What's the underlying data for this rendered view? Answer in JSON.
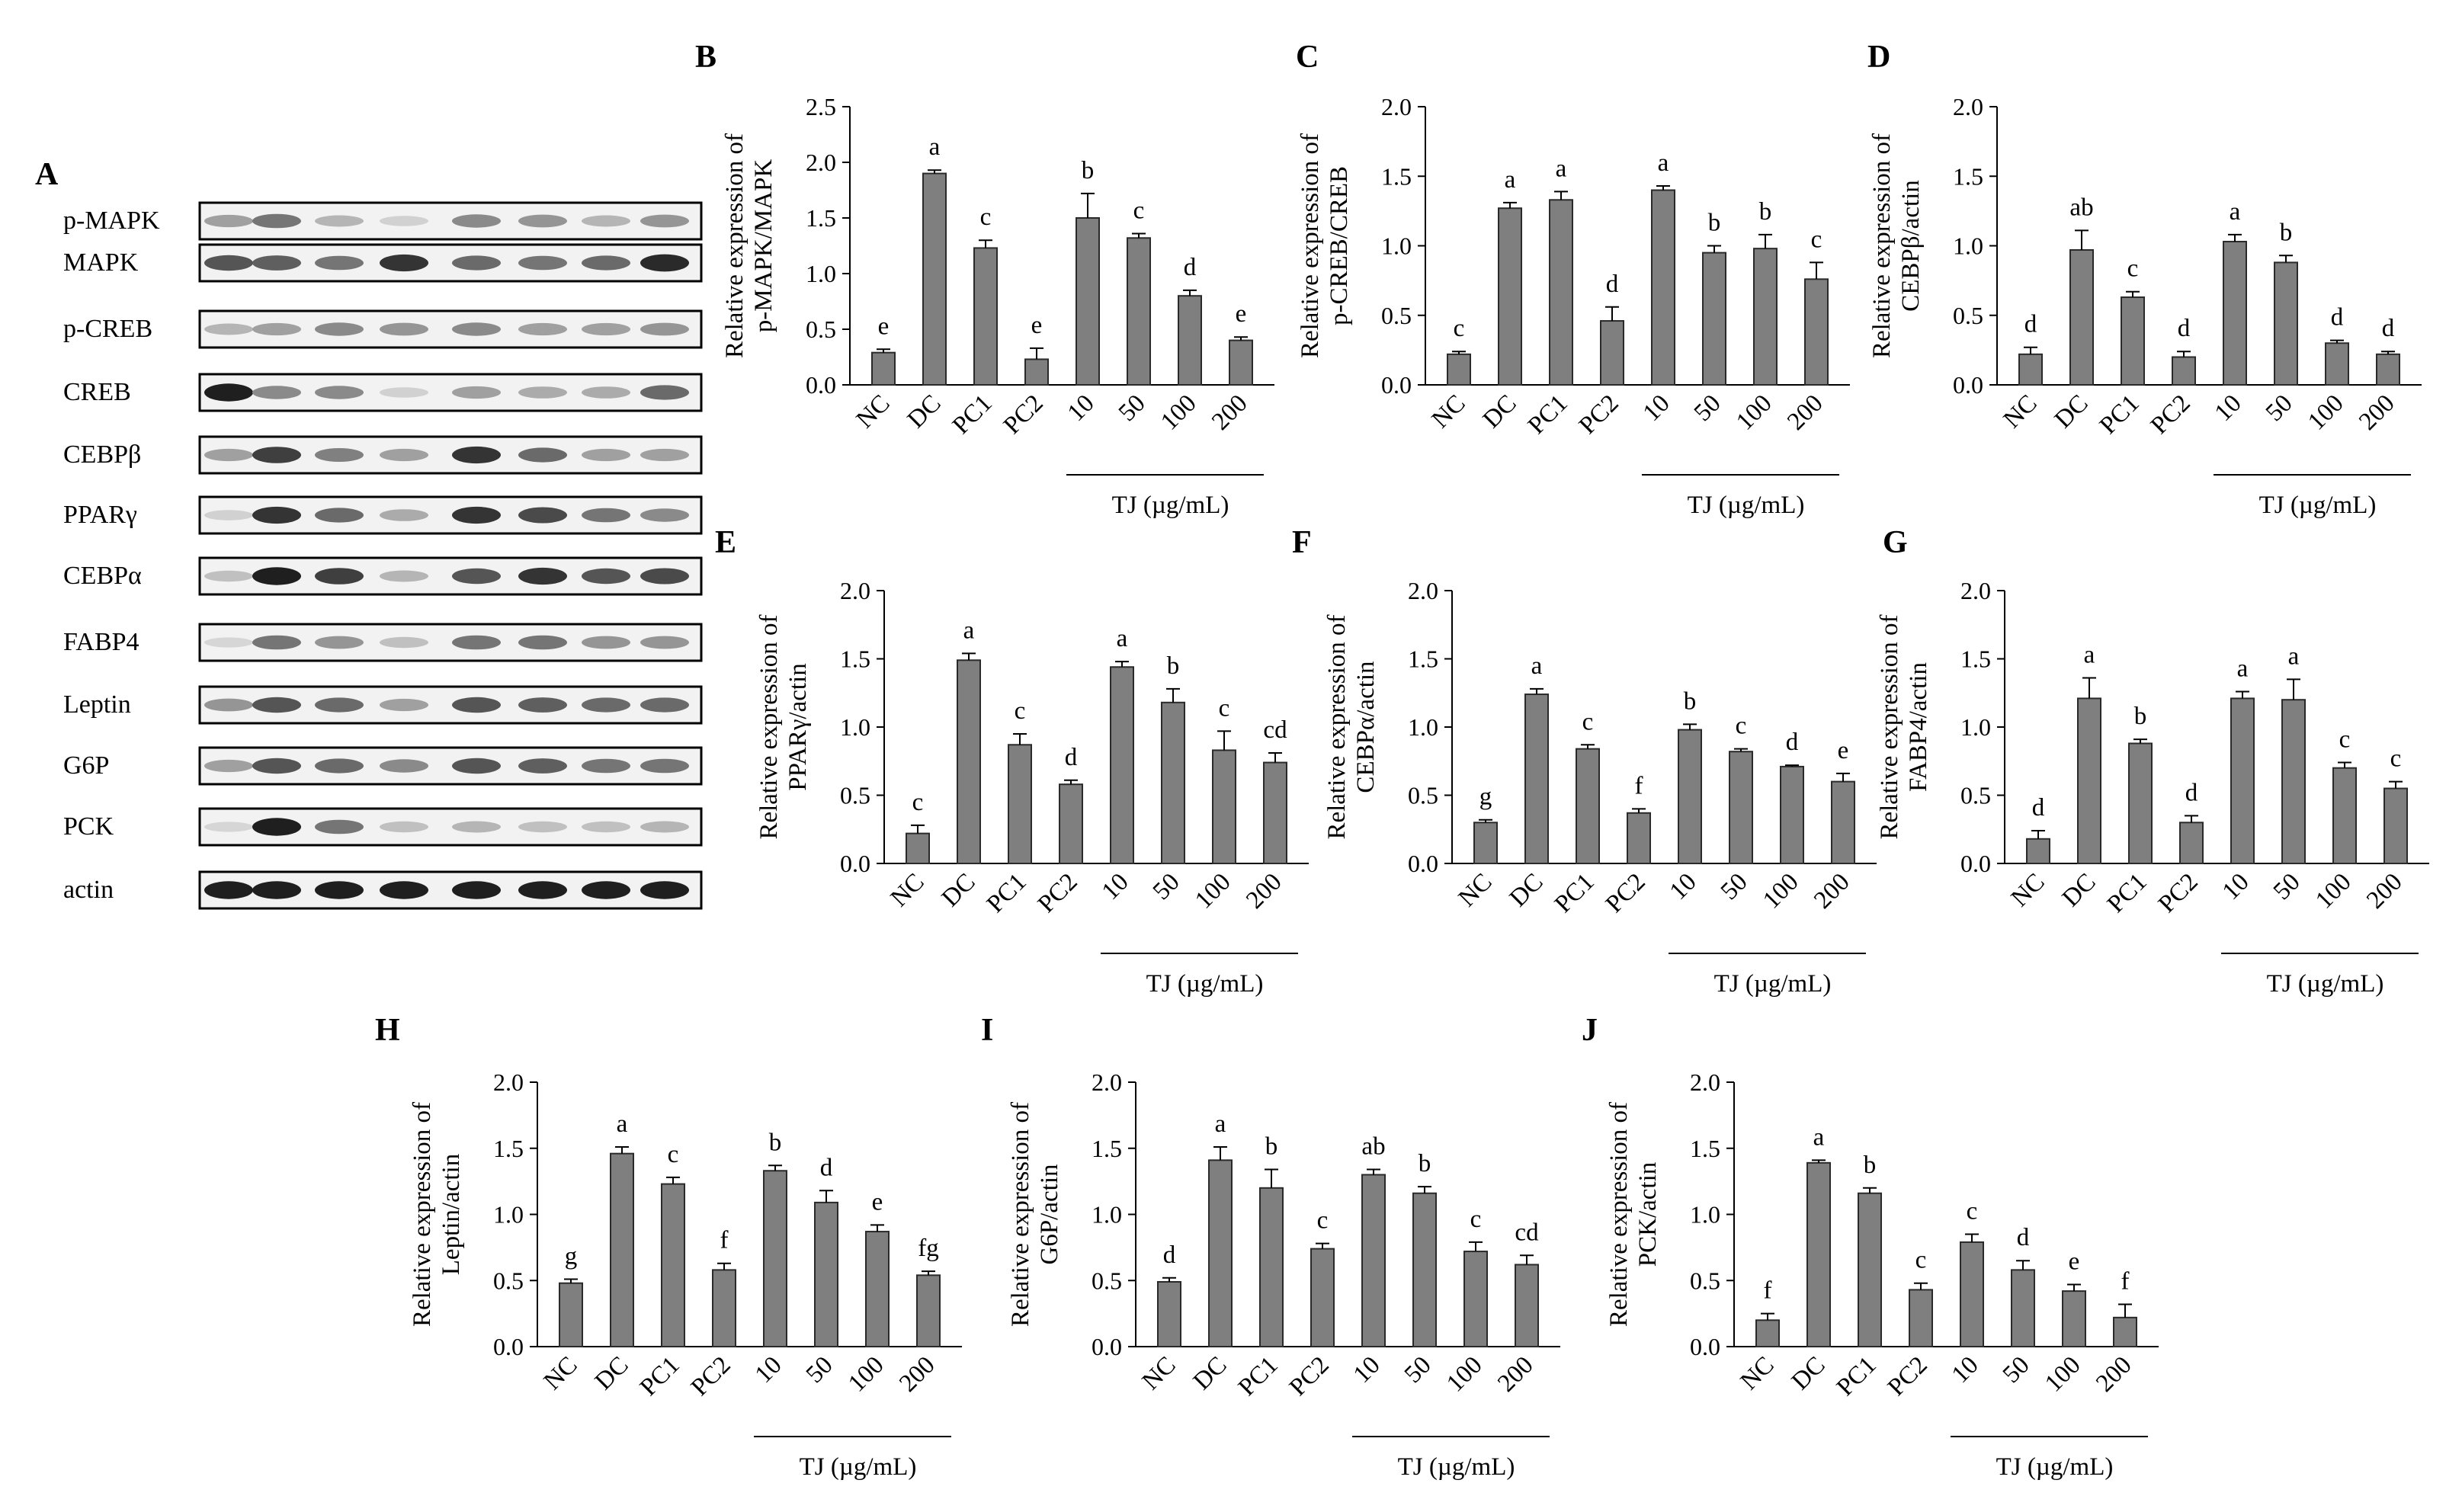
{
  "figure": {
    "groups": [
      "NC",
      "DC",
      "PC1",
      "PC2",
      "10",
      "50",
      "100",
      "200"
    ],
    "tj_label": "TJ (µg/mL)"
  },
  "blot": {
    "panel_letter": "A",
    "rows": [
      {
        "label": "p-MAPK",
        "intensities": [
          0.35,
          0.55,
          0.25,
          0.12,
          0.45,
          0.4,
          0.25,
          0.4
        ]
      },
      {
        "label": "MAPK",
        "intensities": [
          0.7,
          0.65,
          0.55,
          0.85,
          0.6,
          0.55,
          0.6,
          0.9
        ]
      },
      {
        "label": "p-CREB",
        "intensities": [
          0.25,
          0.35,
          0.45,
          0.4,
          0.45,
          0.35,
          0.35,
          0.4
        ]
      },
      {
        "label": "CREB",
        "intensities": [
          0.95,
          0.45,
          0.45,
          0.12,
          0.35,
          0.3,
          0.3,
          0.6
        ]
      },
      {
        "label": "CEBPβ",
        "intensities": [
          0.35,
          0.8,
          0.5,
          0.35,
          0.85,
          0.6,
          0.35,
          0.35
        ]
      },
      {
        "label": "PPARγ",
        "intensities": [
          0.12,
          0.85,
          0.6,
          0.3,
          0.85,
          0.75,
          0.55,
          0.45
        ]
      },
      {
        "label": "CEBPα",
        "intensities": [
          0.2,
          0.95,
          0.8,
          0.25,
          0.7,
          0.85,
          0.7,
          0.75
        ]
      },
      {
        "label": "FABP4",
        "intensities": [
          0.1,
          0.55,
          0.4,
          0.2,
          0.55,
          0.55,
          0.4,
          0.4
        ]
      },
      {
        "label": "Leptin",
        "intensities": [
          0.4,
          0.7,
          0.6,
          0.35,
          0.7,
          0.65,
          0.6,
          0.6
        ]
      },
      {
        "label": "G6P",
        "intensities": [
          0.35,
          0.7,
          0.6,
          0.45,
          0.7,
          0.65,
          0.55,
          0.55
        ]
      },
      {
        "label": "PCK",
        "intensities": [
          0.1,
          0.95,
          0.55,
          0.2,
          0.25,
          0.2,
          0.2,
          0.25
        ]
      },
      {
        "label": "actin",
        "intensities": [
          0.95,
          0.95,
          0.95,
          0.95,
          0.95,
          0.95,
          0.95,
          0.95
        ]
      }
    ]
  },
  "chart_data": [
    {
      "panel": "B",
      "type": "bar",
      "ylabel_lines": [
        "Relative expression of",
        "p-MAPK/MAPK"
      ],
      "categories": [
        "NC",
        "DC",
        "PC1",
        "PC2",
        "10",
        "50",
        "100",
        "200"
      ],
      "values": [
        0.29,
        1.9,
        1.23,
        0.23,
        1.5,
        1.32,
        0.8,
        0.4
      ],
      "errors": [
        0.03,
        0.03,
        0.07,
        0.1,
        0.22,
        0.04,
        0.05,
        0.03
      ],
      "letters": [
        "e",
        "a",
        "c",
        "e",
        "b",
        "c",
        "d",
        "e"
      ],
      "ylim": [
        0,
        2.5
      ],
      "yticks": [
        "0.0",
        "0.5",
        "1.0",
        "1.5",
        "2.0",
        "2.5"
      ],
      "xlabel": "TJ (µg/mL)"
    },
    {
      "panel": "C",
      "type": "bar",
      "ylabel_lines": [
        "Relative expression of",
        "p-CREB/CREB"
      ],
      "categories": [
        "NC",
        "DC",
        "PC1",
        "PC2",
        "10",
        "50",
        "100",
        "200"
      ],
      "values": [
        0.22,
        1.27,
        1.33,
        0.46,
        1.4,
        0.95,
        0.98,
        0.76
      ],
      "errors": [
        0.02,
        0.04,
        0.06,
        0.1,
        0.03,
        0.05,
        0.1,
        0.12
      ],
      "letters": [
        "c",
        "a",
        "a",
        "d",
        "a",
        "b",
        "b",
        "c"
      ],
      "ylim": [
        0,
        2.0
      ],
      "yticks": [
        "0.0",
        "0.5",
        "1.0",
        "1.5",
        "2.0"
      ],
      "xlabel": "TJ (µg/mL)"
    },
    {
      "panel": "D",
      "type": "bar",
      "ylabel_lines": [
        "Relative expression of",
        "CEBPβ/actin"
      ],
      "categories": [
        "NC",
        "DC",
        "PC1",
        "PC2",
        "10",
        "50",
        "100",
        "200"
      ],
      "values": [
        0.22,
        0.97,
        0.63,
        0.2,
        1.03,
        0.88,
        0.3,
        0.22
      ],
      "errors": [
        0.05,
        0.14,
        0.04,
        0.04,
        0.05,
        0.05,
        0.02,
        0.02
      ],
      "letters": [
        "d",
        "ab",
        "c",
        "d",
        "a",
        "b",
        "d",
        "d"
      ],
      "ylim": [
        0,
        2.0
      ],
      "yticks": [
        "0.0",
        "0.5",
        "1.0",
        "1.5",
        "2.0"
      ],
      "xlabel": "TJ (µg/mL)"
    },
    {
      "panel": "E",
      "type": "bar",
      "ylabel_lines": [
        "Relative expression of",
        "PPARγ/actin"
      ],
      "categories": [
        "NC",
        "DC",
        "PC1",
        "PC2",
        "10",
        "50",
        "100",
        "200"
      ],
      "values": [
        0.22,
        1.49,
        0.87,
        0.58,
        1.44,
        1.18,
        0.83,
        0.74
      ],
      "errors": [
        0.06,
        0.05,
        0.08,
        0.03,
        0.04,
        0.1,
        0.14,
        0.07
      ],
      "letters": [
        "c",
        "a",
        "c",
        "d",
        "a",
        "b",
        "c",
        "cd"
      ],
      "ylim": [
        0,
        2.0
      ],
      "yticks": [
        "0.0",
        "0.5",
        "1.0",
        "1.5",
        "2.0"
      ],
      "xlabel": "TJ (µg/mL)"
    },
    {
      "panel": "F",
      "type": "bar",
      "ylabel_lines": [
        "Relative expression of",
        "CEBPα/actin"
      ],
      "categories": [
        "NC",
        "DC",
        "PC1",
        "PC2",
        "10",
        "50",
        "100",
        "200"
      ],
      "values": [
        0.3,
        1.24,
        0.84,
        0.37,
        0.98,
        0.82,
        0.71,
        0.6
      ],
      "errors": [
        0.02,
        0.04,
        0.03,
        0.03,
        0.04,
        0.02,
        0.01,
        0.06
      ],
      "letters": [
        "g",
        "a",
        "c",
        "f",
        "b",
        "c",
        "d",
        "e"
      ],
      "ylim": [
        0,
        2.0
      ],
      "yticks": [
        "0.0",
        "0.5",
        "1.0",
        "1.5",
        "2.0"
      ],
      "xlabel": "TJ (µg/mL)"
    },
    {
      "panel": "G",
      "type": "bar",
      "ylabel_lines": [
        "Relative expression of",
        "FABP4/actin"
      ],
      "categories": [
        "NC",
        "DC",
        "PC1",
        "PC2",
        "10",
        "50",
        "100",
        "200"
      ],
      "values": [
        0.18,
        1.21,
        0.88,
        0.3,
        1.21,
        1.2,
        0.7,
        0.55
      ],
      "errors": [
        0.06,
        0.15,
        0.03,
        0.05,
        0.05,
        0.15,
        0.04,
        0.05
      ],
      "letters": [
        "d",
        "a",
        "b",
        "d",
        "a",
        "a",
        "c",
        "c"
      ],
      "ylim": [
        0,
        2.0
      ],
      "yticks": [
        "0.0",
        "0.5",
        "1.0",
        "1.5",
        "2.0"
      ],
      "xlabel": "TJ (µg/mL)"
    },
    {
      "panel": "H",
      "type": "bar",
      "ylabel_lines": [
        "Relative expression of",
        "Leptin/actin"
      ],
      "categories": [
        "NC",
        "DC",
        "PC1",
        "PC2",
        "10",
        "50",
        "100",
        "200"
      ],
      "values": [
        0.48,
        1.46,
        1.23,
        0.58,
        1.33,
        1.09,
        0.87,
        0.54
      ],
      "errors": [
        0.03,
        0.05,
        0.05,
        0.05,
        0.04,
        0.09,
        0.05,
        0.03
      ],
      "letters": [
        "g",
        "a",
        "c",
        "f",
        "b",
        "d",
        "e",
        "fg"
      ],
      "ylim": [
        0,
        2.0
      ],
      "yticks": [
        "0.0",
        "0.5",
        "1.0",
        "1.5",
        "2.0"
      ],
      "xlabel": "TJ (µg/mL)"
    },
    {
      "panel": "I",
      "type": "bar",
      "ylabel_lines": [
        "Relative expression of",
        "G6P/actin"
      ],
      "categories": [
        "NC",
        "DC",
        "PC1",
        "PC2",
        "10",
        "50",
        "100",
        "200"
      ],
      "values": [
        0.49,
        1.41,
        1.2,
        0.74,
        1.3,
        1.16,
        0.72,
        0.62
      ],
      "errors": [
        0.03,
        0.1,
        0.14,
        0.04,
        0.04,
        0.05,
        0.07,
        0.07
      ],
      "letters": [
        "d",
        "a",
        "b",
        "c",
        "ab",
        "b",
        "c",
        "cd"
      ],
      "ylim": [
        0,
        2.0
      ],
      "yticks": [
        "0.0",
        "0.5",
        "1.0",
        "1.5",
        "2.0"
      ],
      "xlabel": "TJ (µg/mL)"
    },
    {
      "panel": "J",
      "type": "bar",
      "ylabel_lines": [
        "Relative expression of",
        "PCK/actin"
      ],
      "categories": [
        "NC",
        "DC",
        "PC1",
        "PC2",
        "10",
        "50",
        "100",
        "200"
      ],
      "values": [
        0.2,
        1.39,
        1.16,
        0.43,
        0.79,
        0.58,
        0.42,
        0.22
      ],
      "errors": [
        0.05,
        0.02,
        0.04,
        0.05,
        0.06,
        0.07,
        0.05,
        0.1
      ],
      "letters": [
        "f",
        "a",
        "b",
        "c",
        "c",
        "d",
        "e",
        "f"
      ],
      "ylim": [
        0,
        2.0
      ],
      "yticks": [
        "0.0",
        "0.5",
        "1.0",
        "1.5",
        "2.0"
      ],
      "xlabel": "TJ (µg/mL)"
    }
  ]
}
